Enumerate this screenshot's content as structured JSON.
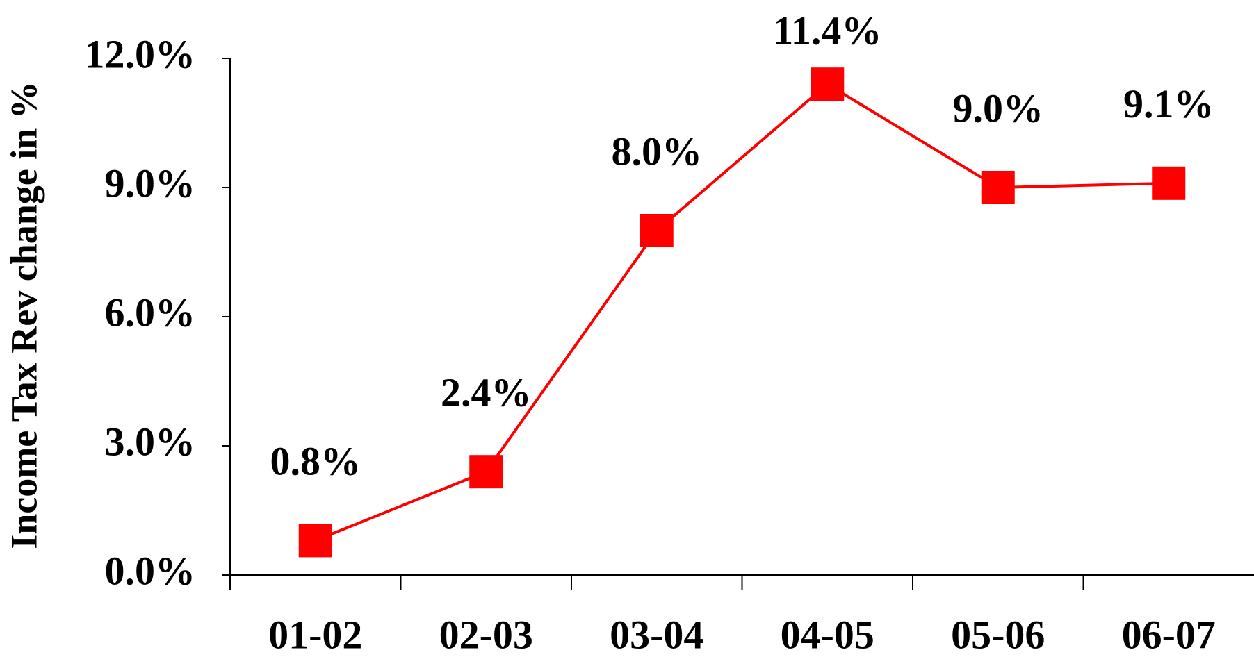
{
  "chart_data": {
    "type": "line",
    "y_label": "Income Tax Rev change in %",
    "categories": [
      "01-02",
      "02-03",
      "03-04",
      "04-05",
      "05-06",
      "06-07"
    ],
    "series": [
      {
        "color": "#ff0000",
        "values": [
          0.8,
          2.4,
          8.0,
          11.4,
          9.0,
          9.1
        ],
        "value_labels": [
          "0.8%",
          "2.4%",
          "8.0%",
          "11.4%",
          "9.0%",
          "9.1%"
        ]
      }
    ],
    "ylim": [
      0,
      12
    ],
    "yticks": [
      {
        "value": 0,
        "label": "0.0%"
      },
      {
        "value": 3,
        "label": "3.0%"
      },
      {
        "value": 6,
        "label": "6.0%"
      },
      {
        "value": 9,
        "label": "9.0%"
      },
      {
        "value": 12,
        "label": "12.0%"
      }
    ],
    "grid": false
  }
}
